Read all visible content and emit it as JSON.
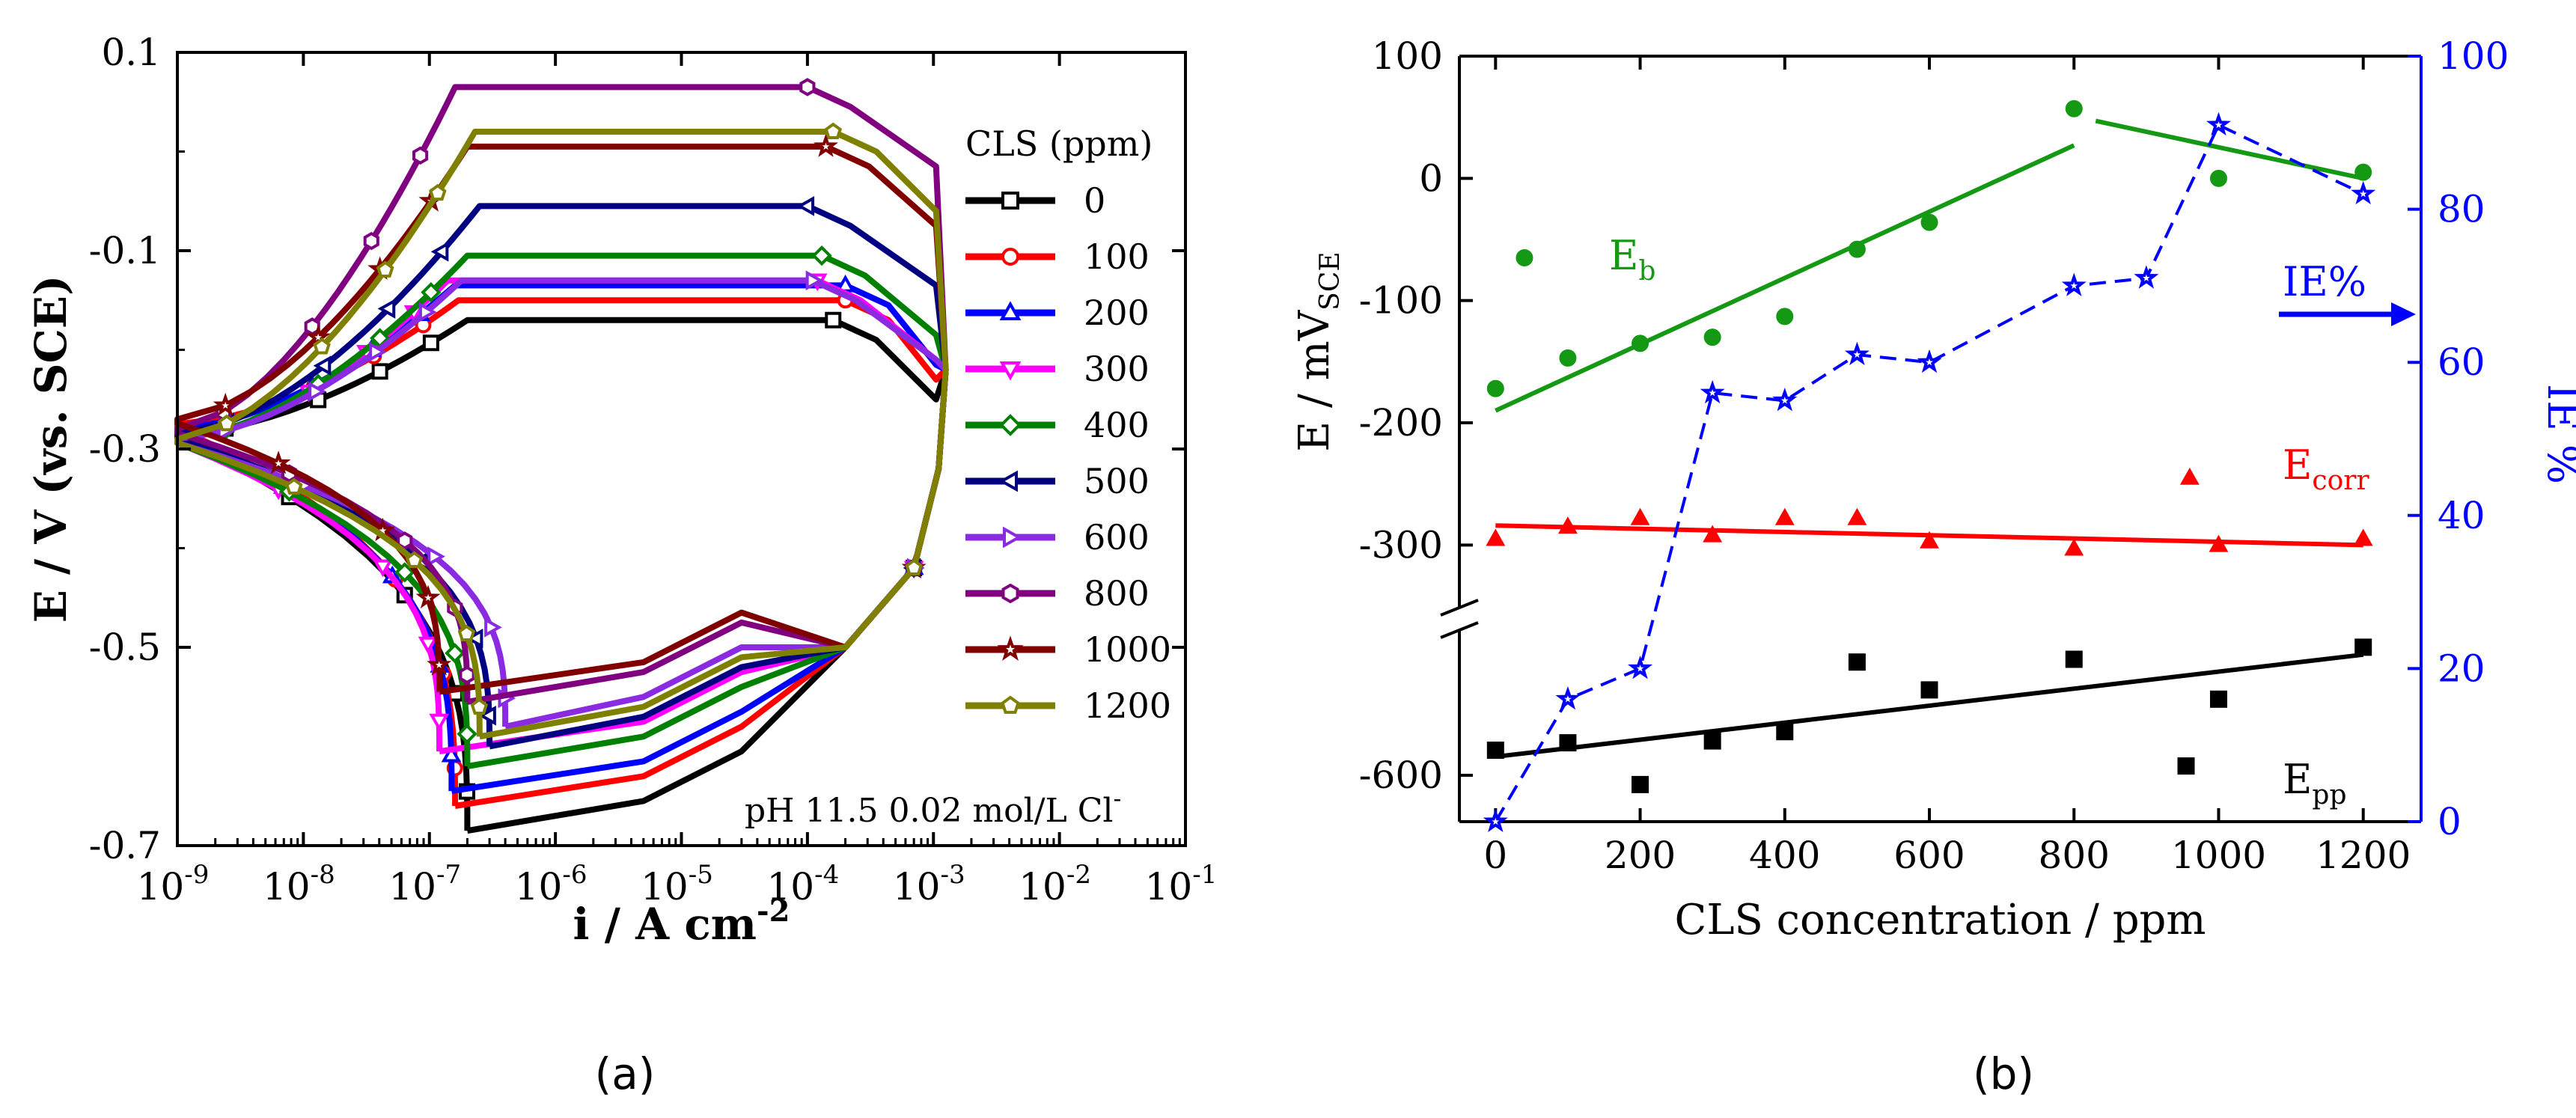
{
  "chart_data": [
    {
      "panel_label": "(a)",
      "type": "line",
      "xscale": "log",
      "xlabel": "i / A cm",
      "xlabel_sup": "-2",
      "ylabel": "E / V (vs. SCE)",
      "xlim": [
        1e-09,
        0.1
      ],
      "ylim": [
        -0.7,
        0.1
      ],
      "xticks": [
        {
          "v": 1e-09,
          "b": "10",
          "e": "-9"
        },
        {
          "v": 1e-08,
          "b": "10",
          "e": "-8"
        },
        {
          "v": 1e-07,
          "b": "10",
          "e": "-7"
        },
        {
          "v": 1e-06,
          "b": "10",
          "e": "-6"
        },
        {
          "v": 1e-05,
          "b": "10",
          "e": "-5"
        },
        {
          "v": 0.0001,
          "b": "10",
          "e": "-4"
        },
        {
          "v": 0.001,
          "b": "10",
          "e": "-3"
        },
        {
          "v": 0.01,
          "b": "10",
          "e": "-2"
        },
        {
          "v": 0.1,
          "b": "10",
          "e": "-1"
        }
      ],
      "yticks": [
        {
          "v": 0.1,
          "label": "0.1"
        },
        {
          "v": -0.1,
          "label": "-0.1"
        },
        {
          "v": -0.3,
          "label": "-0.3"
        },
        {
          "v": -0.5,
          "label": "-0.5"
        },
        {
          "v": -0.7,
          "label": "-0.7"
        }
      ],
      "legend_title": "CLS (ppm)",
      "legend_position": "right",
      "annotation": "pH 11.5 0.02 mol/L Cl",
      "annotation_sup": "-",
      "series": [
        {
          "name": "0",
          "color": "#000000",
          "marker": "square",
          "ecorr": -0.285,
          "epass": -0.17,
          "ipass": 0.00016,
          "icath": 2e-07,
          "emin": -0.685,
          "eb": -0.17,
          "ipp": 2e-07
        },
        {
          "name": "100",
          "color": "#ff0000",
          "marker": "circle",
          "ecorr": -0.275,
          "epass": -0.15,
          "ipass": 0.0002,
          "icath": 1.6e-07,
          "emin": -0.66,
          "eb": -0.15,
          "ipp": 1.7e-07
        },
        {
          "name": "200",
          "color": "#0000ff",
          "marker": "triangle-up",
          "ecorr": -0.28,
          "epass": -0.135,
          "ipass": 0.0002,
          "icath": 1.5e-07,
          "emin": -0.645,
          "eb": -0.135,
          "ipp": 1.6e-07
        },
        {
          "name": "300",
          "color": "#ff00ff",
          "marker": "triangle-down",
          "ecorr": -0.29,
          "epass": -0.13,
          "ipass": 0.00012,
          "icath": 1.2e-07,
          "emin": -0.605,
          "eb": -0.13,
          "ipp": 1.4e-07
        },
        {
          "name": "400",
          "color": "#008000",
          "marker": "diamond",
          "ecorr": -0.29,
          "epass": -0.105,
          "ipass": 0.00013,
          "icath": 2e-07,
          "emin": -0.62,
          "eb": -0.105,
          "ipp": 2e-07
        },
        {
          "name": "500",
          "color": "#000080",
          "marker": "triangle-left",
          "ecorr": -0.285,
          "epass": -0.055,
          "ipass": 0.0001,
          "icath": 3e-07,
          "emin": -0.6,
          "eb": -0.055,
          "ipp": 2.5e-07
        },
        {
          "name": "600",
          "color": "#8a2be2",
          "marker": "triangle-right",
          "ecorr": -0.29,
          "epass": -0.13,
          "ipass": 0.00011,
          "icath": 4e-07,
          "emin": -0.58,
          "eb": -0.13,
          "ipp": 1.8e-07
        },
        {
          "name": "800",
          "color": "#800080",
          "marker": "hexagon",
          "ecorr": -0.28,
          "epass": 0.065,
          "ipass": 0.0001,
          "icath": 2e-07,
          "emin": -0.555,
          "eb": 0.065,
          "ipp": 1.6e-07
        },
        {
          "name": "1000",
          "color": "#800000",
          "marker": "star",
          "ecorr": -0.27,
          "epass": 0.005,
          "ipass": 0.00014,
          "icath": 1.2e-07,
          "emin": -0.545,
          "eb": 0.005,
          "ipp": 2e-07
        },
        {
          "name": "1200",
          "color": "#808000",
          "marker": "pentagon",
          "ecorr": -0.29,
          "epass": 0.02,
          "ipass": 0.00016,
          "icath": 2.5e-07,
          "emin": -0.59,
          "eb": 0.02,
          "ipp": 2.3e-07
        }
      ]
    },
    {
      "panel_label": "(b)",
      "type": "scatter",
      "xlabel": "CLS concentration / ppm",
      "ylabel_left": "E / mV",
      "ylabel_left_sub": "SCE",
      "ylabel_right": "IE %",
      "xlim": [
        -50,
        1280
      ],
      "xticks": [
        0,
        200,
        400,
        600,
        800,
        1000,
        1200
      ],
      "yticks_left_upper": [
        100,
        0,
        -100,
        -200,
        -300
      ],
      "yticks_left_lower": [
        -600
      ],
      "yticks_right": [
        0,
        20,
        40,
        60,
        80,
        100
      ],
      "left_axis_break": true,
      "labels": {
        "eb": "E",
        "eb_sub": "b",
        "ecorr": "E",
        "ecorr_sub": "corr",
        "epp": "E",
        "epp_sub": "pp",
        "ie": "IE%"
      },
      "series": [
        {
          "name": "Eb",
          "color": "#159915",
          "marker": "circle",
          "points": [
            [
              0,
              -172
            ],
            [
              40,
              -65
            ],
            [
              100,
              -147
            ],
            [
              200,
              -135
            ],
            [
              300,
              -130
            ],
            [
              400,
              -113
            ],
            [
              500,
              -58
            ],
            [
              600,
              -36
            ],
            [
              800,
              57
            ],
            [
              1000,
              0
            ],
            [
              1200,
              5
            ]
          ],
          "fits": [
            [
              [
                0,
                -190
              ],
              [
                800,
                27
              ]
            ],
            [
              [
                830,
                47
              ],
              [
                1200,
                0
              ]
            ]
          ]
        },
        {
          "name": "Ecorr",
          "color": "#ff0000",
          "marker": "triangle-up",
          "points": [
            [
              0,
              -295
            ],
            [
              100,
              -285
            ],
            [
              200,
              -278
            ],
            [
              300,
              -292
            ],
            [
              400,
              -278
            ],
            [
              500,
              -278
            ],
            [
              600,
              -297
            ],
            [
              800,
              -303
            ],
            [
              960,
              -245
            ],
            [
              1000,
              -300
            ],
            [
              1200,
              -295
            ]
          ],
          "fits": [
            [
              [
                0,
                -284
              ],
              [
                1200,
                -300
              ]
            ]
          ]
        },
        {
          "name": "Epp",
          "color": "#000000",
          "marker": "square",
          "points": [
            [
              0,
              -573
            ],
            [
              100,
              -565
            ],
            [
              200,
              -610
            ],
            [
              300,
              -563
            ],
            [
              400,
              -553
            ],
            [
              500,
              -478
            ],
            [
              600,
              -508
            ],
            [
              800,
              -475
            ],
            [
              955,
              -590
            ],
            [
              1000,
              -518
            ],
            [
              1200,
              -462
            ]
          ],
          "fits": [
            [
              [
                0,
                -580
              ],
              [
                1200,
                -470
              ]
            ]
          ]
        },
        {
          "name": "IE%",
          "color": "#0000ff",
          "marker": "star",
          "axis": "right",
          "dashed": true,
          "points": [
            [
              0,
              0
            ],
            [
              100,
              16
            ],
            [
              200,
              20
            ],
            [
              300,
              56
            ],
            [
              400,
              55
            ],
            [
              500,
              61
            ],
            [
              600,
              60
            ],
            [
              800,
              70
            ],
            [
              900,
              71
            ],
            [
              1000,
              91
            ],
            [
              1200,
              82
            ]
          ]
        }
      ]
    }
  ]
}
